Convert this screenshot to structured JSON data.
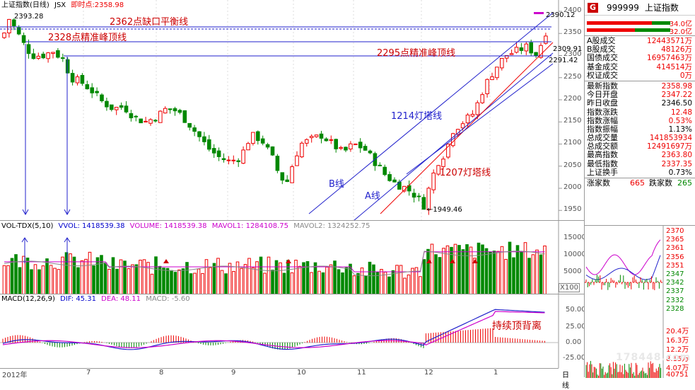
{
  "kline": {
    "title": "上证指数(日线)",
    "code": "JSX",
    "realtime_label": "即时点:",
    "realtime_value": "2358.98",
    "y_ticks": [
      "2400",
      "2350",
      "2300",
      "2250",
      "2200",
      "2150",
      "2100",
      "2050",
      "2000",
      "1950"
    ],
    "high_label": "2393.28",
    "high_top_label": "2390.12",
    "low_label": "←1949.46",
    "level_2309": "2309.91",
    "level_2291": "2291.42",
    "ann_2362": "2362点缺口平衡线",
    "ann_2328": "2328点精准峰顶线",
    "ann_2295": "2295点精准峰顶线",
    "ann_1214": "1214灯塔线",
    "ann_1207": "1207灯塔线",
    "ann_b": "B线",
    "ann_a": "A线"
  },
  "vol": {
    "name": "VOL-TDX(5,10)",
    "vvol": "VVOL: 1418539.38",
    "volume": "VOLUME: 1418539.38",
    "mavol1": "MAVOL1: 1284108.75",
    "mavol2": "MAVOL2: 1324252.75",
    "y_ticks": [
      "15000",
      "10000",
      "5000"
    ],
    "unit": "X100"
  },
  "macd": {
    "name": "MACD(12,26,9)",
    "dif": "DIF: 45.31",
    "dea": "DEA: 48.11",
    "macd": "MACD: -5.60",
    "y_ticks": [
      "50.00",
      "25.00",
      "0.00",
      "-25.00"
    ],
    "annotation": "持续顶背离"
  },
  "x_axis": {
    "labels": [
      "2012年",
      "7",
      "8",
      "9",
      "10",
      "11",
      "12",
      "1"
    ],
    "period": "日线"
  },
  "side": {
    "g_label": "G",
    "code": "999999",
    "name": "上证指数",
    "bar1_value": "34.0亿",
    "bar2_value": "32.0亿",
    "stats": [
      {
        "label": "A股成交",
        "value": "12443571万",
        "color": "red"
      },
      {
        "label": "B股成交",
        "value": "48126万",
        "color": "red"
      },
      {
        "label": "国债成交",
        "value": "16957463万",
        "color": "red"
      },
      {
        "label": "基金成交",
        "value": "414514万",
        "color": "red"
      },
      {
        "label": "权证成交",
        "value": "0万",
        "color": "red"
      }
    ],
    "quotes": [
      {
        "label": "最新指数",
        "value": "2358.98",
        "color": "red"
      },
      {
        "label": "今日开盘",
        "value": "2347.22",
        "color": "red"
      },
      {
        "label": "昨日收盘",
        "value": "2346.50",
        "color": "black"
      },
      {
        "label": "指数涨跌",
        "value": "12.48",
        "color": "red"
      },
      {
        "label": "指数涨幅",
        "value": "0.53%",
        "color": "red"
      },
      {
        "label": "指数振幅",
        "value": "1.13%",
        "color": "black"
      },
      {
        "label": "总成交量",
        "value": "141853934",
        "color": "red"
      },
      {
        "label": "总成交额",
        "value": "12491697万",
        "color": "red"
      },
      {
        "label": "最高指数",
        "value": "2363.80",
        "color": "red"
      },
      {
        "label": "最低指数",
        "value": "2337.35",
        "color": "red"
      },
      {
        "label": "上证换手",
        "value": "0.73%",
        "color": "black"
      }
    ],
    "up_label": "涨家数",
    "up_value": "665",
    "down_label": "跌家数",
    "down_value": "265"
  },
  "mini": {
    "right_ticks": [
      "2370",
      "2365",
      "2361",
      "2356",
      "2351",
      "2347",
      "2342",
      "2337",
      "2332",
      "2328"
    ],
    "vol_ticks": [
      "20.4万",
      "16.3万",
      "12.2万",
      "8.15万",
      "4.07万",
      "40751"
    ],
    "watermark": "178448.com"
  }
}
